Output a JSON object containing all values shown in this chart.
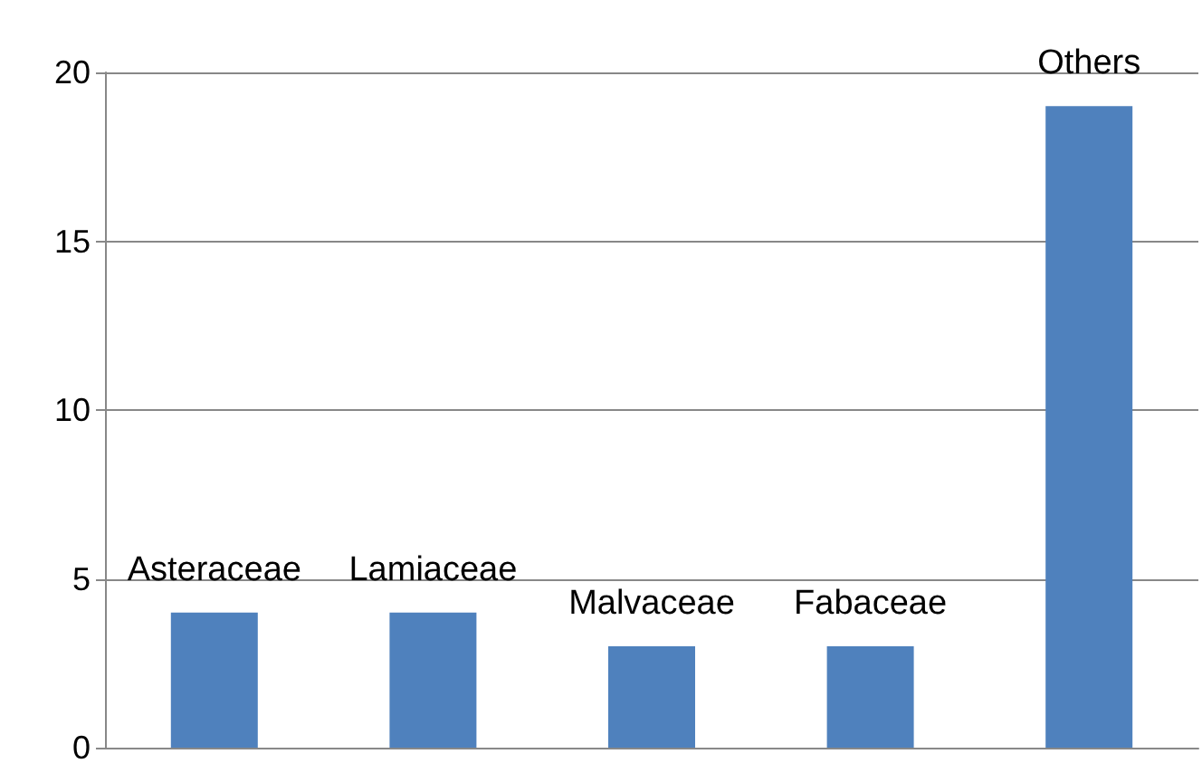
{
  "chart_data": {
    "type": "bar",
    "categories": [
      "Asteraceae",
      "Lamiaceae",
      "Malvaceae",
      "Fabaceae",
      "Others"
    ],
    "values": [
      4,
      4,
      3,
      3,
      19
    ],
    "color": "#4f81bd",
    "ylim": [
      0,
      20
    ],
    "yticks": [
      0,
      5,
      10,
      15,
      20
    ],
    "grid": "y"
  }
}
